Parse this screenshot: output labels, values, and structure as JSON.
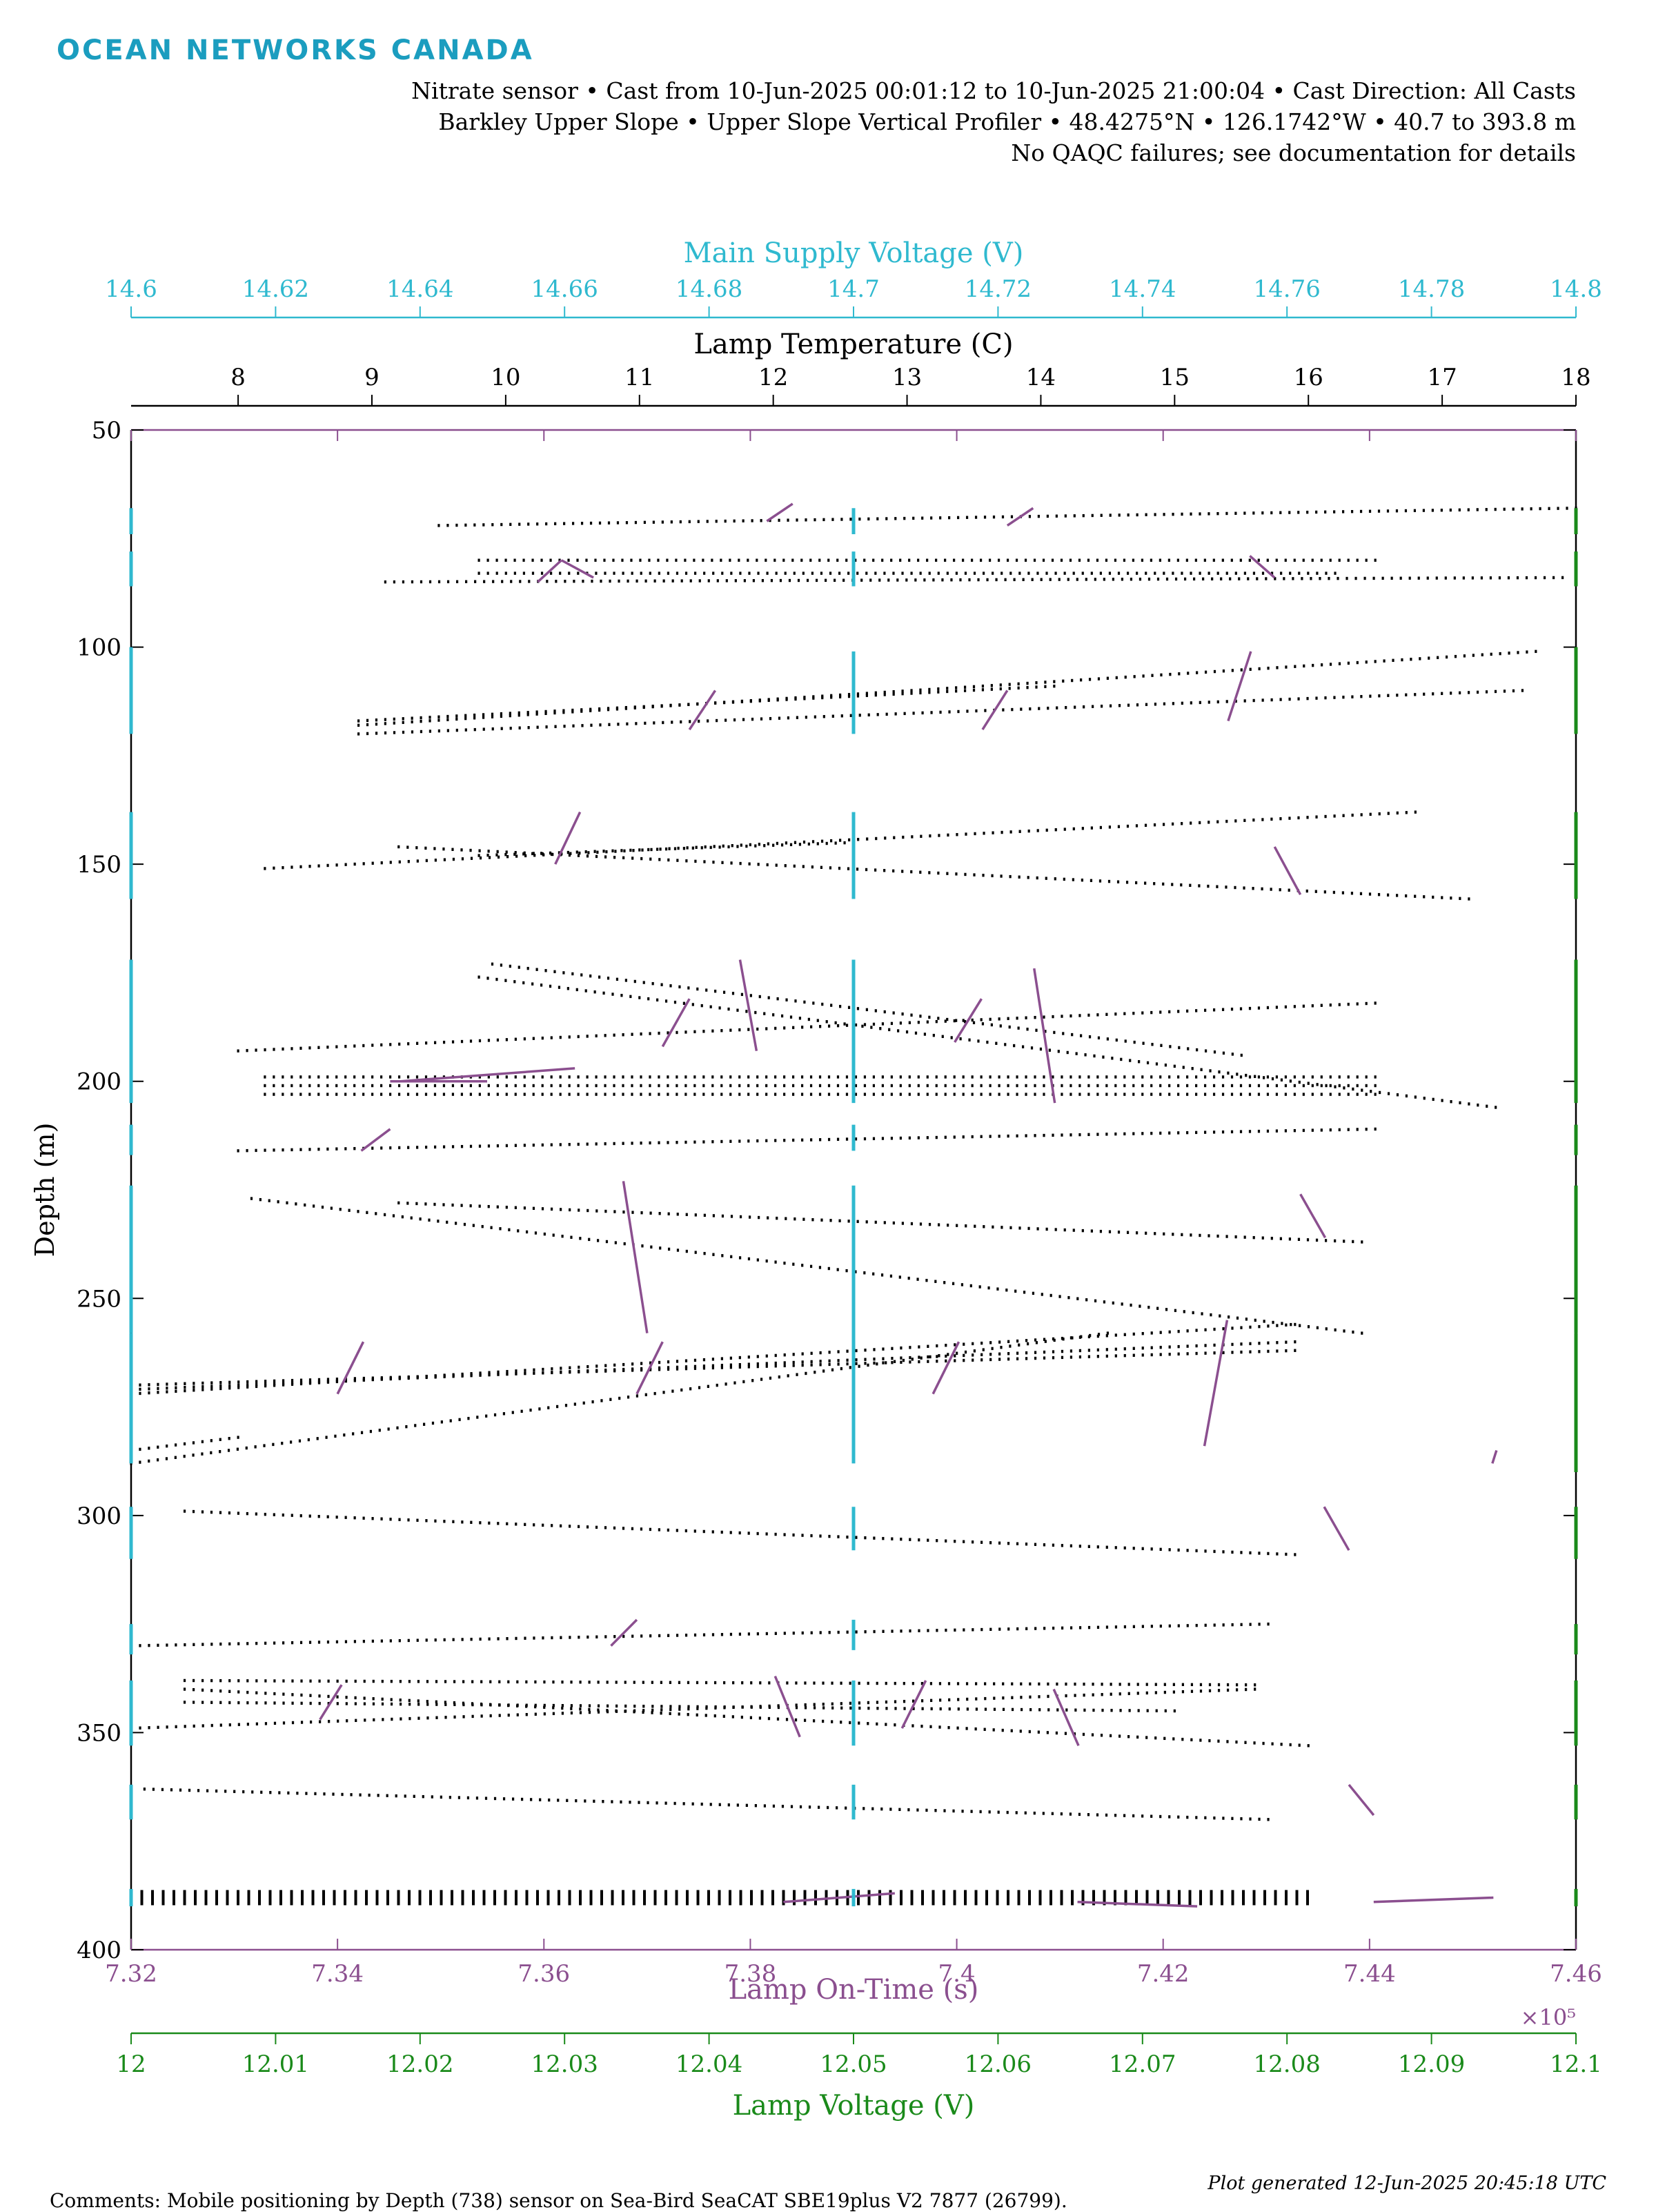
{
  "header": {
    "brand": "OCEAN NETWORKS CANADA",
    "line1": "Nitrate sensor • Cast from 10-Jun-2025 00:01:12 to 10-Jun-2025 21:00:04 • Cast Direction: All Casts",
    "line2": "Barkley Upper Slope • Upper Slope Vertical Profiler • 48.4275°N • 126.1742°W • 40.7 to 393.8 m",
    "line3": "No QAQC failures; see documentation for details"
  },
  "footer": {
    "comment": "Comments: Mobile positioning by Depth (738) sensor on Sea-Bird SeaCAT SBE19plus V2 7877 (26799).",
    "generated": "Plot generated 12-Jun-2025 20:45:18 UTC"
  },
  "colors": {
    "supply_voltage": "#2fb9cf",
    "lamp_temperature": "#000000",
    "lamp_on_time": "#8b4f8f",
    "lamp_voltage": "#1a8a1a"
  },
  "chart_data": {
    "type": "scatter",
    "ylabel": "Depth (m)",
    "ylim": [
      400,
      50
    ],
    "yticks": [
      "50",
      "100",
      "150",
      "200",
      "250",
      "300",
      "350",
      "400"
    ],
    "axes": {
      "supply_voltage": {
        "label": "Main Supply Voltage (V)",
        "lim": [
          14.6,
          14.8
        ],
        "ticks": [
          "14.6",
          "14.62",
          "14.64",
          "14.66",
          "14.68",
          "14.7",
          "14.72",
          "14.74",
          "14.76",
          "14.78",
          "14.8"
        ]
      },
      "lamp_temperature": {
        "label": "Lamp Temperature (C)",
        "lim": [
          7.2,
          18
        ],
        "ticks": [
          "8",
          "9",
          "10",
          "11",
          "12",
          "13",
          "14",
          "15",
          "16",
          "17",
          "18"
        ]
      },
      "lamp_on_time": {
        "label": "Lamp On-Time (s)",
        "lim": [
          7.32,
          7.46
        ],
        "multiplier": "×10⁵",
        "ticks": [
          "7.32",
          "7.34",
          "7.36",
          "7.38",
          "7.4",
          "7.42",
          "7.44",
          "7.46"
        ]
      },
      "lamp_voltage": {
        "label": "Lamp Voltage (V)",
        "lim": [
          12,
          12.1
        ],
        "ticks": [
          "12",
          "12.01",
          "12.02",
          "12.03",
          "12.04",
          "12.05",
          "12.06",
          "12.07",
          "12.08",
          "12.09",
          "12.1"
        ]
      }
    },
    "series": [
      {
        "name": "Lamp Temperature",
        "axis": "lamp_temperature",
        "style": "dots",
        "segments": [
          [
            [
              9.5,
              72
            ],
            [
              18,
              68
            ]
          ],
          [
            [
              9.1,
              85
            ],
            [
              17.9,
              84
            ]
          ],
          [
            [
              9.8,
              80
            ],
            [
              16.5,
              80
            ]
          ],
          [
            [
              9.8,
              83
            ],
            [
              16.2,
              83
            ]
          ],
          [
            [
              8.9,
              118
            ],
            [
              17.7,
              101
            ]
          ],
          [
            [
              8.9,
              120
            ],
            [
              17.6,
              110
            ]
          ],
          [
            [
              8.9,
              117
            ],
            [
              14.1,
              109
            ]
          ],
          [
            [
              8.2,
              151
            ],
            [
              16.8,
              138
            ]
          ],
          [
            [
              9.2,
              146
            ],
            [
              17.2,
              158
            ]
          ],
          [
            [
              9.8,
              148
            ],
            [
              12.6,
              145
            ]
          ],
          [
            [
              9.9,
              173
            ],
            [
              15.5,
              194
            ]
          ],
          [
            [
              9.8,
              176
            ],
            [
              17.4,
              206
            ]
          ],
          [
            [
              8.0,
              193
            ],
            [
              16.5,
              182
            ]
          ],
          [
            [
              8.2,
              199
            ],
            [
              16.5,
              199
            ]
          ],
          [
            [
              8.2,
              201
            ],
            [
              16.5,
              201
            ]
          ],
          [
            [
              8.2,
              203
            ],
            [
              16.5,
              203
            ]
          ],
          [
            [
              8.0,
              216
            ],
            [
              16.5,
              211
            ]
          ],
          [
            [
              8.1,
              227
            ],
            [
              16.4,
              258
            ]
          ],
          [
            [
              9.2,
              228
            ],
            [
              16.4,
              237
            ]
          ],
          [
            [
              7.2,
              272
            ],
            [
              15.9,
              256
            ]
          ],
          [
            [
              7.2,
              271
            ],
            [
              15.9,
              260
            ]
          ],
          [
            [
              7.2,
              270
            ],
            [
              15.9,
              262
            ]
          ],
          [
            [
              7.2,
              288
            ],
            [
              14.5,
              258
            ]
          ],
          [
            [
              7.2,
              285
            ],
            [
              8.0,
              282
            ]
          ],
          [
            [
              7.6,
              299
            ],
            [
              15.9,
              309
            ]
          ],
          [
            [
              7.2,
              330
            ],
            [
              15.7,
              325
            ]
          ],
          [
            [
              7.6,
              338
            ],
            [
              15.6,
              339
            ]
          ],
          [
            [
              7.6,
              340
            ],
            [
              16.0,
              353
            ]
          ],
          [
            [
              7.6,
              343
            ],
            [
              15.0,
              345
            ]
          ],
          [
            [
              7.2,
              349
            ],
            [
              15.6,
              340
            ]
          ],
          [
            [
              7.3,
              363
            ],
            [
              15.7,
              370
            ]
          ]
        ],
        "rows": [
          {
            "lim": [
              7.28,
              16.0
            ],
            "depth": 388
          }
        ]
      },
      {
        "name": "Lamp On-Time",
        "axis": "lamp_on_time",
        "style": "segments",
        "segments": [
          [
            [
              7.3816,
              71
            ],
            [
              7.3841,
              67
            ]
          ],
          [
            [
              7.4049,
              72
            ],
            [
              7.4074,
              68
            ]
          ],
          [
            [
              7.3594,
              85
            ],
            [
              7.3617,
              80
            ]
          ],
          [
            [
              7.3617,
              80
            ],
            [
              7.3648,
              84
            ]
          ],
          [
            [
              7.4284,
              79
            ],
            [
              7.4308,
              84
            ]
          ],
          [
            [
              7.3741,
              119
            ],
            [
              7.3766,
              110
            ]
          ],
          [
            [
              7.4025,
              119
            ],
            [
              7.4049,
              110
            ]
          ],
          [
            [
              7.4263,
              117
            ],
            [
              7.4285,
              101
            ]
          ],
          [
            [
              7.3611,
              150
            ],
            [
              7.3635,
              138
            ]
          ],
          [
            [
              7.4308,
              146
            ],
            [
              7.4333,
              157
            ]
          ],
          [
            [
              7.3715,
              192
            ],
            [
              7.3741,
              181
            ]
          ],
          [
            [
              7.379,
              172
            ],
            [
              7.3806,
              193
            ]
          ],
          [
            [
              7.3998,
              191
            ],
            [
              7.4024,
              181
            ]
          ],
          [
            [
              7.4075,
              174
            ],
            [
              7.4095,
              205
            ]
          ],
          [
            [
              7.3451,
              200
            ],
            [
              7.3545,
              200
            ]
          ],
          [
            [
              7.3461,
              200
            ],
            [
              7.363,
              197
            ]
          ],
          [
            [
              7.3423,
              216
            ],
            [
              7.3451,
              211
            ]
          ],
          [
            [
              7.3677,
              223
            ],
            [
              7.37,
              258
            ]
          ],
          [
            [
              7.4333,
              226
            ],
            [
              7.4357,
              236
            ]
          ],
          [
            [
              7.34,
              272
            ],
            [
              7.3425,
              260
            ]
          ],
          [
            [
              7.369,
              272
            ],
            [
              7.3715,
              260
            ]
          ],
          [
            [
              7.3977,
              272
            ],
            [
              7.4002,
              260
            ]
          ],
          [
            [
              7.424,
              284
            ],
            [
              7.4262,
              255
            ]
          ],
          [
            [
              7.4519,
              288
            ],
            [
              7.4523,
              285
            ]
          ],
          [
            [
              7.4356,
              298
            ],
            [
              7.438,
              308
            ]
          ],
          [
            [
              7.3665,
              330
            ],
            [
              7.369,
              324
            ]
          ],
          [
            [
              7.3383,
              347
            ],
            [
              7.3404,
              339
            ]
          ],
          [
            [
              7.3824,
              337
            ],
            [
              7.3848,
              351
            ]
          ],
          [
            [
              7.3947,
              349
            ],
            [
              7.397,
              338
            ]
          ],
          [
            [
              7.4094,
              340
            ],
            [
              7.4118,
              353
            ]
          ],
          [
            [
              7.438,
              362
            ],
            [
              7.4404,
              369
            ]
          ],
          [
            [
              7.3832,
              389
            ],
            [
              7.394,
              387
            ]
          ],
          [
            [
              7.4117,
              389
            ],
            [
              7.4233,
              390
            ]
          ],
          [
            [
              7.4404,
              389
            ],
            [
              7.452,
              388
            ]
          ]
        ]
      },
      {
        "name": "Main Supply Voltage",
        "axis": "supply_voltage",
        "style": "segments",
        "segments": [
          [
            [
              14.6,
              68
            ],
            [
              14.6,
              74
            ]
          ],
          [
            [
              14.6,
              78
            ],
            [
              14.6,
              86
            ]
          ],
          [
            [
              14.6,
              100
            ],
            [
              14.6,
              120
            ]
          ],
          [
            [
              14.6,
              138
            ],
            [
              14.6,
              158
            ]
          ],
          [
            [
              14.6,
              172
            ],
            [
              14.6,
              205
            ]
          ],
          [
            [
              14.6,
              210
            ],
            [
              14.6,
              217
            ]
          ],
          [
            [
              14.6,
              224
            ],
            [
              14.6,
              258
            ]
          ],
          [
            [
              14.6,
              258
            ],
            [
              14.6,
              288
            ]
          ],
          [
            [
              14.6,
              298
            ],
            [
              14.6,
              310
            ]
          ],
          [
            [
              14.6,
              325
            ],
            [
              14.6,
              332
            ]
          ],
          [
            [
              14.6,
              338
            ],
            [
              14.6,
              353
            ]
          ],
          [
            [
              14.6,
              362
            ],
            [
              14.6,
              370
            ]
          ],
          [
            [
              14.6,
              386
            ],
            [
              14.6,
              390
            ]
          ],
          [
            [
              14.7,
              68
            ],
            [
              14.7,
              74
            ]
          ],
          [
            [
              14.7,
              78
            ],
            [
              14.7,
              86
            ]
          ],
          [
            [
              14.7,
              101
            ],
            [
              14.7,
              120
            ]
          ],
          [
            [
              14.7,
              138
            ],
            [
              14.7,
              158
            ]
          ],
          [
            [
              14.7,
              172
            ],
            [
              14.7,
              205
            ]
          ],
          [
            [
              14.7,
              210
            ],
            [
              14.7,
              216
            ]
          ],
          [
            [
              14.7,
              224
            ],
            [
              14.7,
              288
            ]
          ],
          [
            [
              14.7,
              298
            ],
            [
              14.7,
              308
            ]
          ],
          [
            [
              14.7,
              324
            ],
            [
              14.7,
              331
            ]
          ],
          [
            [
              14.7,
              338
            ],
            [
              14.7,
              353
            ]
          ],
          [
            [
              14.7,
              362
            ],
            [
              14.7,
              370
            ]
          ],
          [
            [
              14.7,
              386
            ],
            [
              14.7,
              390
            ]
          ]
        ]
      },
      {
        "name": "Lamp Voltage",
        "axis": "lamp_voltage",
        "style": "segments",
        "segments": [
          [
            [
              12.1,
              68
            ],
            [
              12.1,
              74
            ]
          ],
          [
            [
              12.1,
              78
            ],
            [
              12.1,
              86
            ]
          ],
          [
            [
              12.1,
              100
            ],
            [
              12.1,
              120
            ]
          ],
          [
            [
              12.1,
              138
            ],
            [
              12.1,
              158
            ]
          ],
          [
            [
              12.1,
              172
            ],
            [
              12.1,
              205
            ]
          ],
          [
            [
              12.1,
              210
            ],
            [
              12.1,
              217
            ]
          ],
          [
            [
              12.1,
              224
            ],
            [
              12.1,
              258
            ]
          ],
          [
            [
              12.1,
              258
            ],
            [
              12.1,
              290
            ]
          ],
          [
            [
              12.1,
              298
            ],
            [
              12.1,
              310
            ]
          ],
          [
            [
              12.1,
              325
            ],
            [
              12.1,
              332
            ]
          ],
          [
            [
              12.1,
              338
            ],
            [
              12.1,
              353
            ]
          ],
          [
            [
              12.1,
              362
            ],
            [
              12.1,
              370
            ]
          ],
          [
            [
              12.1,
              386
            ],
            [
              12.1,
              390
            ]
          ]
        ]
      }
    ]
  }
}
